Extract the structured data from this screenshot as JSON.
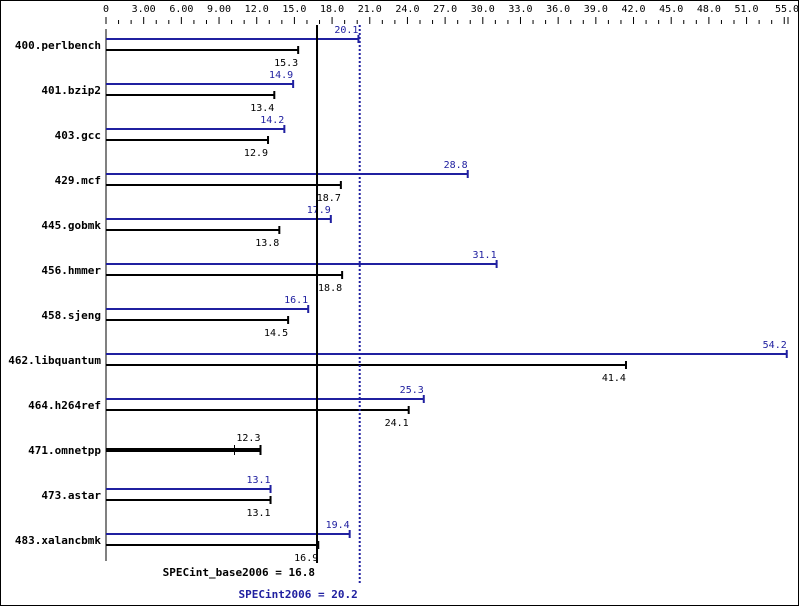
{
  "chart_data": {
    "type": "bar",
    "orientation": "horizontal",
    "xlim": [
      0,
      55.0
    ],
    "tick_labels": [
      "0",
      "3.00",
      "6.00",
      "9.00",
      "12.0",
      "15.0",
      "18.0",
      "21.0",
      "24.0",
      "27.0",
      "30.0",
      "33.0",
      "36.0",
      "39.0",
      "42.0",
      "45.0",
      "48.0",
      "51.0",
      "55.0"
    ],
    "categories": [
      "400.perlbench",
      "401.bzip2",
      "403.gcc",
      "429.mcf",
      "445.gobmk",
      "456.hmmer",
      "458.sjeng",
      "462.libquantum",
      "464.h264ref",
      "471.omnetpp",
      "473.astar",
      "483.xalancbmk"
    ],
    "series": [
      {
        "name": "SPECint2006",
        "color": "#2020a0",
        "values": [
          20.1,
          14.9,
          14.2,
          28.8,
          17.9,
          31.1,
          16.1,
          54.2,
          25.3,
          null,
          13.1,
          19.4
        ]
      },
      {
        "name": "SPECint_base2006",
        "color": "#000000",
        "values": [
          15.3,
          13.4,
          12.9,
          18.7,
          13.8,
          18.8,
          14.5,
          41.4,
          24.1,
          12.3,
          13.1,
          16.9
        ]
      }
    ],
    "reference_lines": [
      {
        "label": "SPECint_base2006 = 16.8",
        "value": 16.8,
        "color": "#000000",
        "style": "solid"
      },
      {
        "label": "SPECint2006 = 20.2",
        "value": 20.2,
        "color": "#2020a0",
        "style": "dotted"
      }
    ]
  }
}
